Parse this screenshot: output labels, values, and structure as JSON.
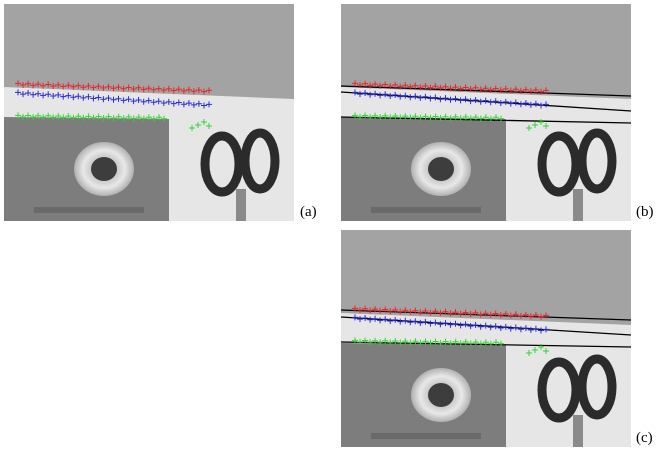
{
  "figure": {
    "panels": [
      {
        "id": "a",
        "label": "(a)",
        "fitted_lines": false
      },
      {
        "id": "b",
        "label": "(b)",
        "fitted_lines": true
      },
      {
        "id": "c",
        "label": "(c)",
        "fitted_lines": true
      }
    ],
    "marker_colors": {
      "red": "#e8242b",
      "blue": "#2a2ad8",
      "green": "#37d237",
      "line": "#000000"
    }
  }
}
